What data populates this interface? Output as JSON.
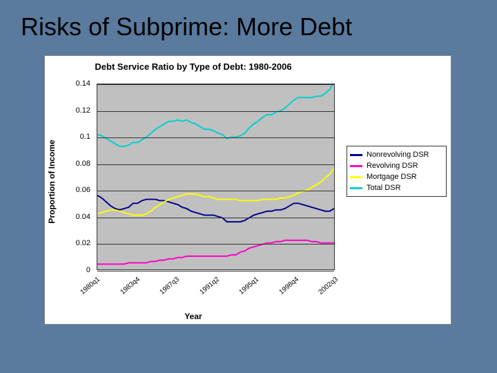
{
  "slide": {
    "title": "Risks of Subprime: More Debt",
    "background_color": "#5a7a9e"
  },
  "chart": {
    "type": "line",
    "title": "Debt Service Ratio by Type of Debt: 1980-2006",
    "title_fontsize": 13,
    "x_axis_title": "Year",
    "y_axis_title": "Proportion of Income",
    "label_fontsize": 12,
    "plot_background": "#c0c0c0",
    "chart_background": "#ffffff",
    "grid_color": "#333333",
    "ylim": [
      0,
      0.14
    ],
    "ytick_step": 0.02,
    "yticks": [
      0,
      0.02,
      0.04,
      0.06,
      0.08,
      0.1,
      0.12,
      0.14
    ],
    "x_categories": [
      "1980q1",
      "1983q4",
      "1987q3",
      "1991q2",
      "1995q1",
      "1998q4",
      "2002q3"
    ],
    "series": [
      {
        "name": "Nonrevolving DSR",
        "color": "#00008b",
        "stroke_width": 2,
        "values": [
          0.056,
          0.054,
          0.051,
          0.048,
          0.046,
          0.045,
          0.046,
          0.047,
          0.05,
          0.05,
          0.052,
          0.053,
          0.053,
          0.053,
          0.052,
          0.052,
          0.051,
          0.05,
          0.049,
          0.047,
          0.046,
          0.044,
          0.043,
          0.042,
          0.041,
          0.041,
          0.041,
          0.04,
          0.039,
          0.036,
          0.036,
          0.036,
          0.036,
          0.037,
          0.039,
          0.041,
          0.042,
          0.043,
          0.044,
          0.044,
          0.045,
          0.045,
          0.046,
          0.048,
          0.05,
          0.05,
          0.049,
          0.048,
          0.047,
          0.046,
          0.045,
          0.044,
          0.044,
          0.046
        ]
      },
      {
        "name": "Revolving DSR",
        "color": "#ff00c8",
        "stroke_width": 2,
        "values": [
          0.004,
          0.004,
          0.004,
          0.004,
          0.004,
          0.004,
          0.004,
          0.005,
          0.005,
          0.005,
          0.005,
          0.005,
          0.006,
          0.006,
          0.007,
          0.007,
          0.008,
          0.008,
          0.009,
          0.009,
          0.01,
          0.01,
          0.01,
          0.01,
          0.01,
          0.01,
          0.01,
          0.01,
          0.01,
          0.01,
          0.011,
          0.011,
          0.013,
          0.014,
          0.016,
          0.017,
          0.018,
          0.019,
          0.02,
          0.02,
          0.021,
          0.021,
          0.022,
          0.022,
          0.022,
          0.022,
          0.022,
          0.022,
          0.021,
          0.021,
          0.02,
          0.02,
          0.02,
          0.02
        ]
      },
      {
        "name": "Mortgage DSR",
        "color": "#ffff00",
        "stroke_width": 2,
        "values": [
          0.042,
          0.043,
          0.044,
          0.045,
          0.045,
          0.044,
          0.043,
          0.042,
          0.041,
          0.041,
          0.041,
          0.042,
          0.044,
          0.047,
          0.049,
          0.051,
          0.053,
          0.054,
          0.055,
          0.056,
          0.057,
          0.057,
          0.057,
          0.056,
          0.055,
          0.055,
          0.054,
          0.053,
          0.053,
          0.053,
          0.053,
          0.053,
          0.052,
          0.052,
          0.052,
          0.052,
          0.052,
          0.053,
          0.053,
          0.053,
          0.053,
          0.054,
          0.054,
          0.055,
          0.056,
          0.058,
          0.059,
          0.06,
          0.062,
          0.064,
          0.066,
          0.069,
          0.072,
          0.076
        ]
      },
      {
        "name": "Total DSR",
        "color": "#00d0d0",
        "stroke_width": 2,
        "values": [
          0.102,
          0.101,
          0.099,
          0.097,
          0.095,
          0.093,
          0.093,
          0.094,
          0.096,
          0.096,
          0.098,
          0.1,
          0.103,
          0.106,
          0.108,
          0.11,
          0.112,
          0.112,
          0.113,
          0.112,
          0.113,
          0.111,
          0.11,
          0.108,
          0.106,
          0.106,
          0.105,
          0.103,
          0.102,
          0.099,
          0.1,
          0.1,
          0.101,
          0.103,
          0.107,
          0.11,
          0.112,
          0.115,
          0.117,
          0.117,
          0.119,
          0.12,
          0.122,
          0.125,
          0.128,
          0.13,
          0.13,
          0.13,
          0.13,
          0.131,
          0.131,
          0.133,
          0.136,
          0.142
        ]
      }
    ],
    "legend": {
      "position": "right",
      "border_color": "#333333",
      "font_size": 11
    }
  }
}
